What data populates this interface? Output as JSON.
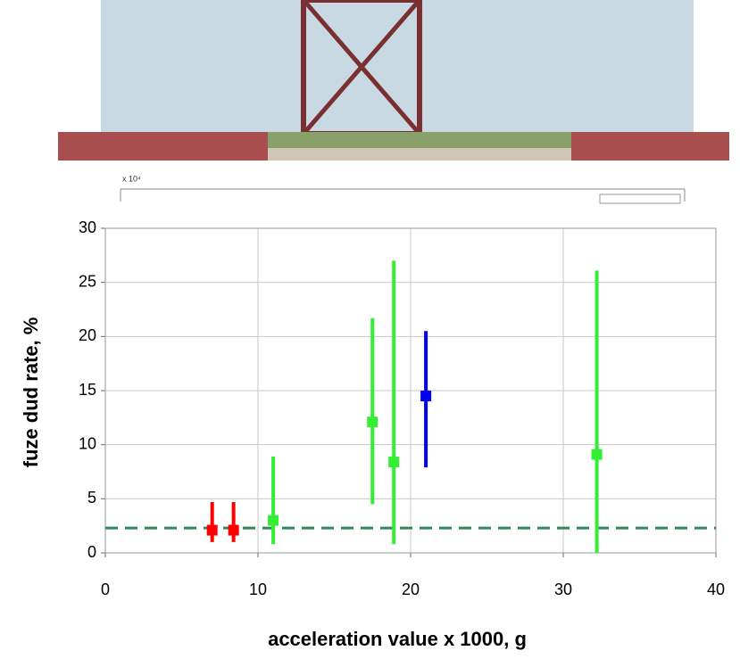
{
  "chart_data": {
    "type": "errorbar-scatter",
    "inset_label": "x 10⁴",
    "xlabel": "acceleration value x 1000, g",
    "ylabel": "fuze dud rate, %",
    "xlim": [
      0,
      40
    ],
    "xticks": [
      0,
      10,
      20,
      30,
      40
    ],
    "ylim": [
      0,
      30
    ],
    "yticks": [
      0,
      5,
      10,
      15,
      20,
      25,
      30
    ],
    "grid": true,
    "series": [
      {
        "color": "#ff0000",
        "x": [
          7,
          8.4
        ],
        "values": [
          2.1,
          2.1
        ],
        "low": [
          1.0,
          1.0
        ],
        "high": [
          4.7,
          4.7
        ]
      },
      {
        "color": "#33ee33",
        "x": [
          11,
          17.5,
          18.9,
          32.2
        ],
        "values": [
          3.0,
          12.1,
          8.4,
          9.1
        ],
        "low": [
          0.8,
          4.5,
          0.8,
          0
        ],
        "high": [
          8.9,
          21.7,
          27.0,
          26.1
        ]
      },
      {
        "color": "#0000ee",
        "x": [
          21
        ],
        "values": [
          14.5
        ],
        "low": [
          7.9
        ],
        "high": [
          20.5
        ]
      }
    ],
    "reference_line": {
      "value": 2.3,
      "color": "#2e8b57"
    }
  }
}
